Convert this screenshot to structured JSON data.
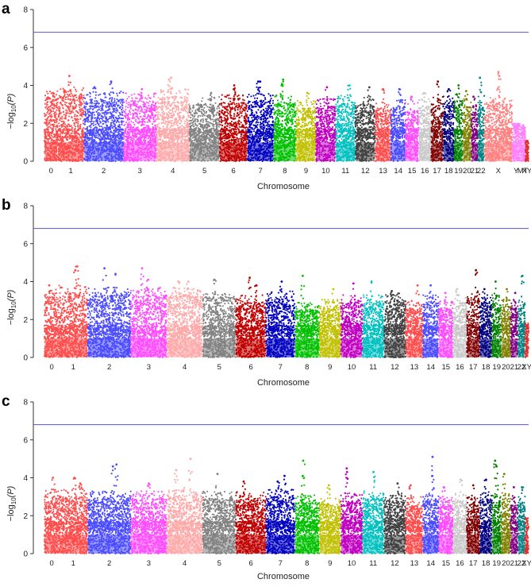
{
  "chart_data": [
    {
      "type": "scatter",
      "subtype": "manhattan",
      "panel_label": "a",
      "xlabel": "Chromosome",
      "ylabel": "−log",
      "ylabel_sub": "10",
      "ylabel_var": "(P)",
      "ylim": [
        0,
        8
      ],
      "yticks": [
        "0",
        "2",
        "4",
        "6",
        "8"
      ],
      "threshold": 6.8,
      "chromosomes": [
        {
          "label": "0",
          "len": 1.0,
          "color": "#ff4b4b",
          "max": 3.7,
          "peaks": [
            3.6,
            3.3
          ]
        },
        {
          "label": "1",
          "len": 2.0,
          "color": "#ff4b4b",
          "max": 3.9,
          "peaks": [
            4.5,
            3.7
          ]
        },
        {
          "label": "2",
          "len": 3.0,
          "color": "#4b4bff",
          "max": 3.7,
          "peaks": [
            4.2,
            3.9
          ]
        },
        {
          "label": "3",
          "len": 2.5,
          "color": "#ff4bff",
          "max": 3.6,
          "peaks": [
            3.8
          ]
        },
        {
          "label": "4",
          "len": 2.5,
          "color": "#ffa8a8",
          "max": 3.8,
          "peaks": [
            4.4,
            4.3
          ]
        },
        {
          "label": "5",
          "len": 2.3,
          "color": "#828282",
          "max": 3.4,
          "peaks": [
            3.6
          ]
        },
        {
          "label": "6",
          "len": 2.1,
          "color": "#c00000",
          "max": 3.5,
          "peaks": [
            4.0,
            3.8
          ]
        },
        {
          "label": "7",
          "len": 2.0,
          "color": "#0000c0",
          "max": 3.6,
          "peaks": [
            4.2,
            4.2
          ]
        },
        {
          "label": "8",
          "len": 1.7,
          "color": "#00c000",
          "max": 3.5,
          "peaks": [
            4.3,
            4.0
          ]
        },
        {
          "label": "9",
          "len": 1.5,
          "color": "#c0c000",
          "max": 3.2,
          "peaks": [
            3.6
          ]
        },
        {
          "label": "10",
          "len": 1.5,
          "color": "#c000c0",
          "max": 3.3,
          "peaks": [
            3.9
          ]
        },
        {
          "label": "11",
          "len": 1.5,
          "color": "#00c0c0",
          "max": 3.5,
          "peaks": [
            4.0
          ]
        },
        {
          "label": "12",
          "len": 1.5,
          "color": "#404040",
          "max": 3.4,
          "peaks": [
            3.9
          ]
        },
        {
          "label": "13",
          "len": 1.2,
          "color": "#ff4b4b",
          "max": 3.1,
          "peaks": [
            3.8
          ]
        },
        {
          "label": "14",
          "len": 1.1,
          "color": "#4b4bff",
          "max": 3.3,
          "peaks": [
            3.8
          ]
        },
        {
          "label": "15",
          "len": 1.0,
          "color": "#ff4bff",
          "max": 3.1,
          "peaks": [
            3.4
          ]
        },
        {
          "label": "16",
          "len": 0.95,
          "color": "#c8c8c8",
          "max": 3.3,
          "peaks": [
            3.6
          ]
        },
        {
          "label": "17",
          "len": 0.9,
          "color": "#800000",
          "max": 3.4,
          "peaks": [
            4.2
          ]
        },
        {
          "label": "18",
          "len": 0.85,
          "color": "#000080",
          "max": 3.5,
          "peaks": [
            3.8
          ]
        },
        {
          "label": "19",
          "len": 0.65,
          "color": "#008000",
          "max": 3.6,
          "peaks": [
            4.0
          ]
        },
        {
          "label": "20",
          "len": 0.65,
          "color": "#808000",
          "max": 3.3,
          "peaks": [
            3.7
          ]
        },
        {
          "label": "21",
          "len": 0.5,
          "color": "#800080",
          "max": 3.0,
          "peaks": [
            3.4
          ]
        },
        {
          "label": "22",
          "len": 0.5,
          "color": "#008080",
          "max": 3.5,
          "peaks": [
            4.4
          ]
        },
        {
          "label": "X",
          "len": 2.1,
          "color": "#ff7f7f",
          "max": 3.5,
          "peaks": [
            4.7,
            4.5
          ]
        },
        {
          "label": "Y",
          "len": 0.6,
          "color": "#ff7fff",
          "max": 2.0,
          "peaks": [
            1.9
          ]
        },
        {
          "label": "MT",
          "len": 0.4,
          "color": "#ff7fff",
          "max": 1.8,
          "peaks": [
            1.9
          ]
        },
        {
          "label": "XY",
          "len": 0.25,
          "color": "#e03030",
          "max": 1.1,
          "peaks": []
        }
      ]
    },
    {
      "type": "scatter",
      "subtype": "manhattan",
      "panel_label": "b",
      "xlabel": "Chromosome",
      "ylabel": "−log",
      "ylabel_sub": "10",
      "ylabel_var": "(P)",
      "ylim": [
        0,
        8
      ],
      "yticks": [
        "0",
        "2",
        "4",
        "6",
        "8"
      ],
      "threshold": 6.8,
      "chromosomes": [
        {
          "label": "0",
          "len": 1.0,
          "color": "#ff4b4b",
          "max": 3.6,
          "peaks": [
            3.8
          ]
        },
        {
          "label": "1",
          "len": 2.0,
          "color": "#ff4b4b",
          "max": 3.8,
          "peaks": [
            4.8,
            4.6
          ]
        },
        {
          "label": "2",
          "len": 3.0,
          "color": "#4b4bff",
          "max": 3.7,
          "peaks": [
            4.7,
            4.4
          ]
        },
        {
          "label": "3",
          "len": 2.5,
          "color": "#ff4bff",
          "max": 3.7,
          "peaks": [
            4.7,
            4.1
          ]
        },
        {
          "label": "4",
          "len": 2.5,
          "color": "#ffa8a8",
          "max": 3.7,
          "peaks": [
            4.0,
            4.0
          ]
        },
        {
          "label": "5",
          "len": 2.3,
          "color": "#828282",
          "max": 3.6,
          "peaks": [
            4.1
          ]
        },
        {
          "label": "6",
          "len": 2.1,
          "color": "#c00000",
          "max": 3.3,
          "peaks": [
            4.2,
            3.8
          ]
        },
        {
          "label": "7",
          "len": 2.0,
          "color": "#0000c0",
          "max": 3.5,
          "peaks": [
            4.0
          ]
        },
        {
          "label": "8",
          "len": 1.7,
          "color": "#00c000",
          "max": 2.9,
          "peaks": [
            4.3
          ]
        },
        {
          "label": "9",
          "len": 1.5,
          "color": "#c0c000",
          "max": 3.1,
          "peaks": [
            3.6
          ]
        },
        {
          "label": "10",
          "len": 1.5,
          "color": "#c000c0",
          "max": 3.3,
          "peaks": [
            3.9
          ]
        },
        {
          "label": "11",
          "len": 1.5,
          "color": "#00c0c0",
          "max": 3.3,
          "peaks": [
            4.0
          ]
        },
        {
          "label": "12",
          "len": 1.5,
          "color": "#404040",
          "max": 3.4,
          "peaks": [
            3.5
          ]
        },
        {
          "label": "13",
          "len": 1.2,
          "color": "#ff4b4b",
          "max": 3.0,
          "peaks": [
            3.8
          ]
        },
        {
          "label": "14",
          "len": 1.1,
          "color": "#4b4bff",
          "max": 3.3,
          "peaks": [
            3.8
          ]
        },
        {
          "label": "15",
          "len": 1.0,
          "color": "#ff4bff",
          "max": 3.0,
          "peaks": [
            3.4
          ]
        },
        {
          "label": "16",
          "len": 0.95,
          "color": "#c8c8c8",
          "max": 3.3,
          "peaks": [
            3.6
          ]
        },
        {
          "label": "17",
          "len": 0.9,
          "color": "#800000",
          "max": 3.5,
          "peaks": [
            4.6
          ]
        },
        {
          "label": "18",
          "len": 0.85,
          "color": "#000080",
          "max": 3.3,
          "peaks": [
            3.6
          ]
        },
        {
          "label": "19",
          "len": 0.65,
          "color": "#008000",
          "max": 3.3,
          "peaks": [
            4.0
          ]
        },
        {
          "label": "20",
          "len": 0.65,
          "color": "#808000",
          "max": 3.1,
          "peaks": [
            3.6
          ]
        },
        {
          "label": "21",
          "len": 0.5,
          "color": "#800080",
          "max": 3.0,
          "peaks": [
            3.4
          ]
        },
        {
          "label": "22",
          "len": 0.5,
          "color": "#008080",
          "max": 3.2,
          "peaks": [
            4.3
          ]
        },
        {
          "label": "XY",
          "len": 0.25,
          "color": "#e03030",
          "max": 1.8,
          "peaks": []
        }
      ]
    },
    {
      "type": "scatter",
      "subtype": "manhattan",
      "panel_label": "c",
      "xlabel": "Chromosome",
      "ylabel": "−log",
      "ylabel_sub": "10",
      "ylabel_var": "(P)",
      "ylim": [
        0,
        8
      ],
      "yticks": [
        "0",
        "2",
        "4",
        "6",
        "8"
      ],
      "threshold": 6.8,
      "chromosomes": [
        {
          "label": "0",
          "len": 1.0,
          "color": "#ff4b4b",
          "max": 3.4,
          "peaks": [
            4.0
          ]
        },
        {
          "label": "1",
          "len": 2.0,
          "color": "#ff4b4b",
          "max": 3.4,
          "peaks": [
            4.0,
            3.7
          ]
        },
        {
          "label": "2",
          "len": 3.0,
          "color": "#4b4bff",
          "max": 3.3,
          "peaks": [
            4.7,
            4.6
          ]
        },
        {
          "label": "3",
          "len": 2.5,
          "color": "#ff4bff",
          "max": 3.3,
          "peaks": [
            3.7
          ]
        },
        {
          "label": "4",
          "len": 2.5,
          "color": "#ffa8a8",
          "max": 3.5,
          "peaks": [
            5.0,
            4.4
          ]
        },
        {
          "label": "5",
          "len": 2.3,
          "color": "#828282",
          "max": 3.3,
          "peaks": [
            4.2
          ]
        },
        {
          "label": "6",
          "len": 2.1,
          "color": "#c00000",
          "max": 3.3,
          "peaks": [
            3.8
          ]
        },
        {
          "label": "7",
          "len": 2.0,
          "color": "#0000c0",
          "max": 3.4,
          "peaks": [
            4.1,
            3.8
          ]
        },
        {
          "label": "8",
          "len": 1.7,
          "color": "#00c000",
          "max": 3.1,
          "peaks": [
            4.9,
            4.1
          ]
        },
        {
          "label": "9",
          "len": 1.5,
          "color": "#c0c000",
          "max": 3.0,
          "peaks": [
            3.6
          ]
        },
        {
          "label": "10",
          "len": 1.5,
          "color": "#c000c0",
          "max": 3.2,
          "peaks": [
            4.5,
            4.3
          ]
        },
        {
          "label": "11",
          "len": 1.5,
          "color": "#00c0c0",
          "max": 3.3,
          "peaks": [
            4.3
          ]
        },
        {
          "label": "12",
          "len": 1.5,
          "color": "#404040",
          "max": 3.2,
          "peaks": [
            3.7
          ]
        },
        {
          "label": "13",
          "len": 1.2,
          "color": "#ff4b4b",
          "max": 3.0,
          "peaks": [
            3.6
          ]
        },
        {
          "label": "14",
          "len": 1.1,
          "color": "#4b4bff",
          "max": 3.2,
          "peaks": [
            5.1,
            4.1
          ]
        },
        {
          "label": "15",
          "len": 1.0,
          "color": "#ff4bff",
          "max": 3.0,
          "peaks": [
            3.5
          ]
        },
        {
          "label": "16",
          "len": 0.95,
          "color": "#c8c8c8",
          "max": 3.2,
          "peaks": [
            3.9
          ]
        },
        {
          "label": "17",
          "len": 0.9,
          "color": "#800000",
          "max": 3.0,
          "peaks": [
            3.6
          ]
        },
        {
          "label": "18",
          "len": 0.85,
          "color": "#000080",
          "max": 3.3,
          "peaks": [
            3.9
          ]
        },
        {
          "label": "19",
          "len": 0.65,
          "color": "#008000",
          "max": 3.2,
          "peaks": [
            4.9,
            4.6
          ]
        },
        {
          "label": "20",
          "len": 0.65,
          "color": "#808000",
          "max": 3.3,
          "peaks": [
            4.2
          ]
        },
        {
          "label": "21",
          "len": 0.5,
          "color": "#800080",
          "max": 3.0,
          "peaks": [
            3.5
          ]
        },
        {
          "label": "22",
          "len": 0.5,
          "color": "#008080",
          "max": 3.1,
          "peaks": [
            3.5
          ]
        },
        {
          "label": "XY",
          "len": 0.25,
          "color": "#e03030",
          "max": 1.9,
          "peaks": []
        }
      ]
    }
  ],
  "colors": {
    "threshold_line": "#5555cc",
    "axis": "#333333"
  }
}
